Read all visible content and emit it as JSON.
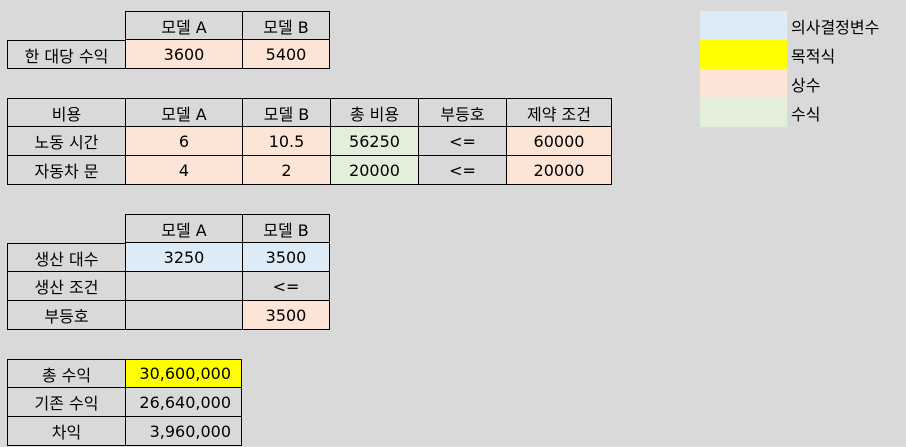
{
  "colors": {
    "decision": "#ddebf7",
    "objective": "#ffff00",
    "constant": "#fce4d6",
    "formula": "#e2efda"
  },
  "table1": {
    "header": [
      "모델 A",
      "모델 B"
    ],
    "row_label": "한 대당 수익",
    "values": [
      "3600",
      "5400"
    ]
  },
  "table2": {
    "header": [
      "비용",
      "모델 A",
      "모델 B",
      "총 비용",
      "부등호",
      "제약 조건"
    ],
    "rows": [
      [
        "노동 시간",
        "6",
        "10.5",
        "56250",
        "<=",
        "60000"
      ],
      [
        "자동차 문",
        "4",
        "2",
        "20000",
        "<=",
        "20000"
      ]
    ]
  },
  "table3": {
    "header": [
      "모델 A",
      "모델 B"
    ],
    "rows": [
      [
        "생산 대수",
        "3250",
        "3500"
      ],
      [
        "생산 조건",
        "",
        "<="
      ],
      [
        "부등호",
        "",
        "3500"
      ]
    ]
  },
  "table4": {
    "rows": [
      [
        "총 수익",
        "30,600,000"
      ],
      [
        "기존 수익",
        "26,640,000"
      ],
      [
        "차익",
        "3,960,000"
      ]
    ]
  },
  "legend": [
    {
      "label": "의사결정변수",
      "color_key": "decision"
    },
    {
      "label": "목적식",
      "color_key": "objective"
    },
    {
      "label": "상수",
      "color_key": "constant"
    },
    {
      "label": "수식",
      "color_key": "formula"
    }
  ]
}
